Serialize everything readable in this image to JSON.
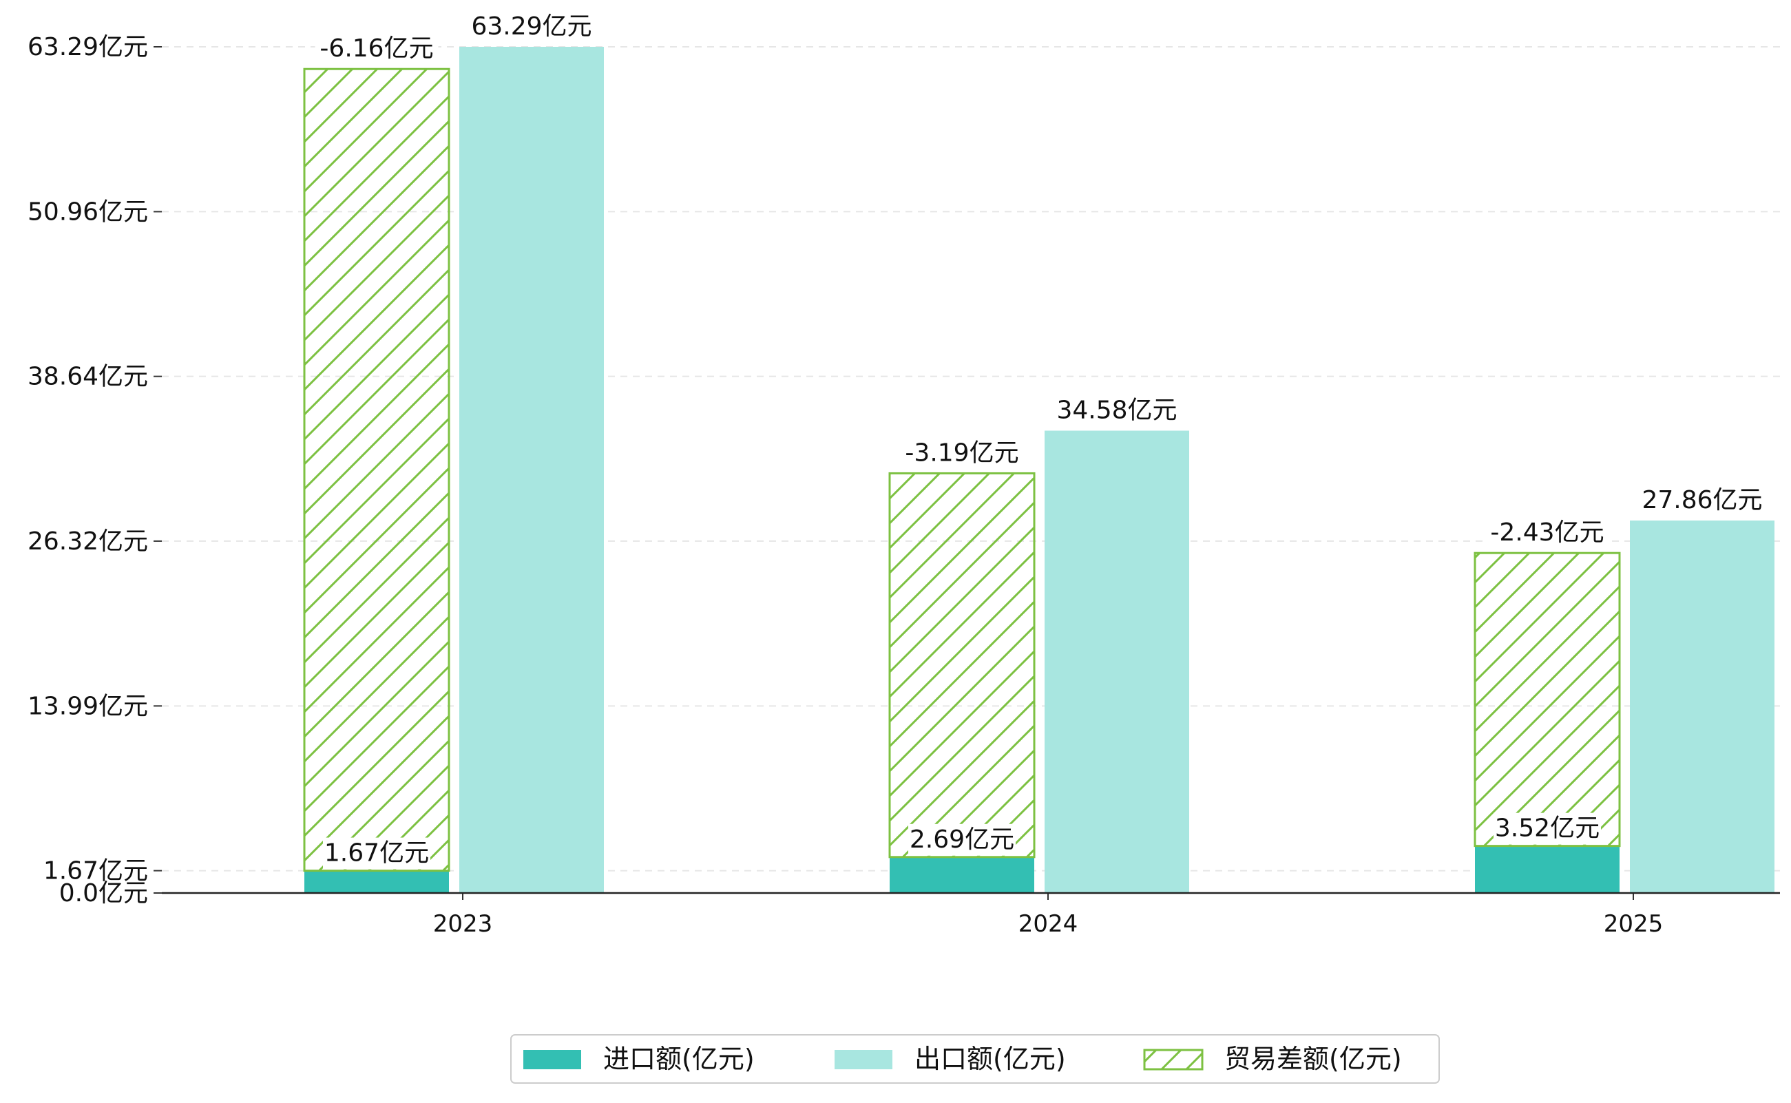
{
  "chart_data": {
    "type": "bar",
    "categories": [
      "2023",
      "2024",
      "2025"
    ],
    "series": [
      {
        "name": "进口额(亿元)",
        "values": [
          1.67,
          2.69,
          3.52
        ],
        "labels": [
          "1.67亿元",
          "2.69亿元",
          "3.52亿元"
        ],
        "color": "#33BFB3"
      },
      {
        "name": "出口额(亿元)",
        "values": [
          63.29,
          34.58,
          27.86
        ],
        "labels": [
          "63.29亿元",
          "34.58亿元",
          "27.86亿元"
        ],
        "color": "#A8E6E0"
      },
      {
        "name": "贸易差额(亿元)",
        "values": [
          -6.16,
          -3.19,
          -2.43
        ],
        "labels": [
          "-6.16亿元",
          "-3.19亿元",
          "-2.43亿元"
        ],
        "color": "#7DC142",
        "style": "hatched",
        "display_range": [
          [
            1.67,
            61.63
          ],
          [
            2.69,
            31.39
          ],
          [
            3.52,
            25.43
          ]
        ]
      }
    ],
    "yticks": [
      0.0,
      1.67,
      13.99,
      26.32,
      38.64,
      50.96,
      63.29
    ],
    "ytick_labels": [
      "0.0亿元",
      "1.67亿元",
      "13.99亿元",
      "26.32亿元",
      "38.64亿元",
      "50.96亿元",
      "63.29亿元"
    ],
    "ylim": [
      0,
      63.29
    ],
    "grid": "horizontal-dashed",
    "legend_position": "bottom-center",
    "title": "",
    "xlabel": "",
    "ylabel": ""
  }
}
